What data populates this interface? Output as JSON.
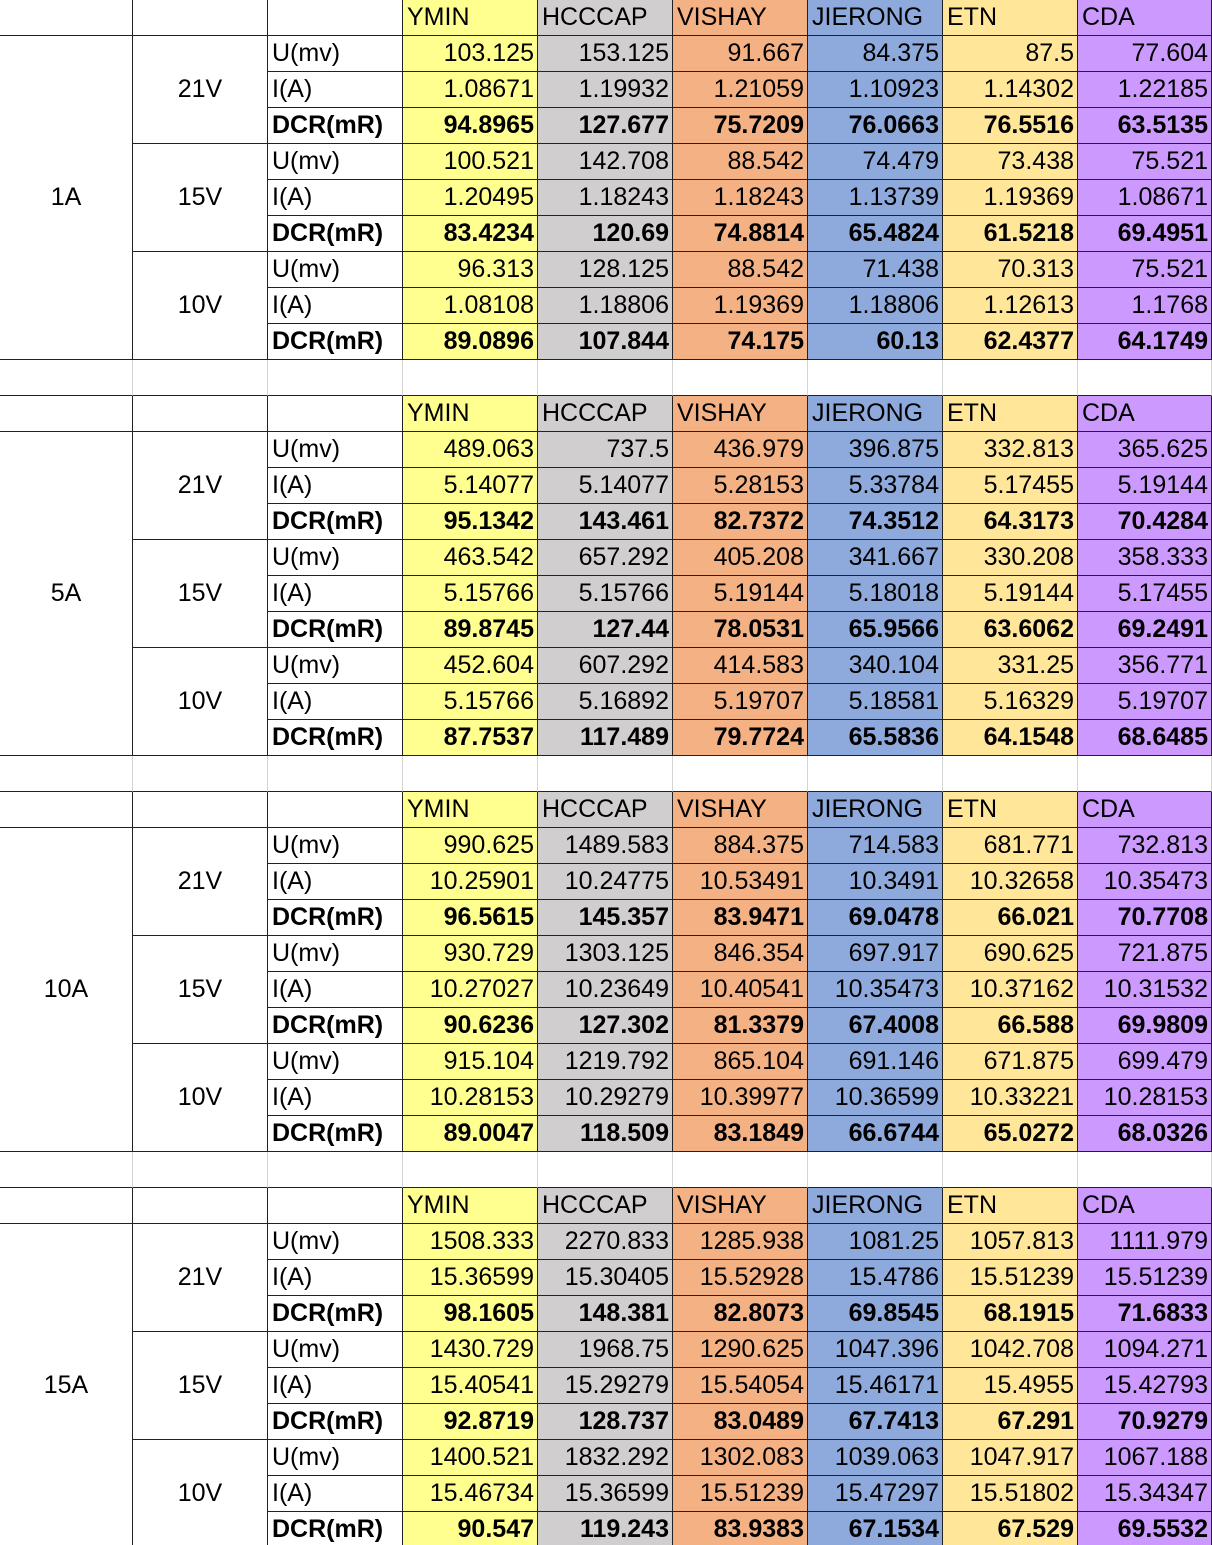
{
  "blocks": [
    {
      "current": "1A",
      "headers": [
        "YMIN",
        "HCCCAP",
        "VISHAY",
        "JIERONG",
        "ETN",
        "CDA"
      ],
      "groups": [
        {
          "voltage": "21V",
          "rows": [
            {
              "label": "U(mv)",
              "values": [
                "103.125",
                "153.125",
                "91.667",
                "84.375",
                "87.5",
                "77.604"
              ]
            },
            {
              "label": "I(A)",
              "values": [
                "1.08671",
                "1.19932",
                "1.21059",
                "1.10923",
                "1.14302",
                "1.22185"
              ]
            },
            {
              "label": "DCR(mR)",
              "values": [
                "94.8965",
                "127.677",
                "75.7209",
                "76.0663",
                "76.5516",
                "63.5135"
              ]
            }
          ]
        },
        {
          "voltage": "15V",
          "rows": [
            {
              "label": "U(mv)",
              "values": [
                "100.521",
                "142.708",
                "88.542",
                "74.479",
                "73.438",
                "75.521"
              ]
            },
            {
              "label": "I(A)",
              "values": [
                "1.20495",
                "1.18243",
                "1.18243",
                "1.13739",
                "1.19369",
                "1.08671"
              ]
            },
            {
              "label": "DCR(mR)",
              "values": [
                "83.4234",
                "120.69",
                "74.8814",
                "65.4824",
                "61.5218",
                "69.4951"
              ]
            }
          ]
        },
        {
          "voltage": "10V",
          "rows": [
            {
              "label": "U(mv)",
              "values": [
                "96.313",
                "128.125",
                "88.542",
                "71.438",
                "70.313",
                "75.521"
              ]
            },
            {
              "label": "I(A)",
              "values": [
                "1.08108",
                "1.18806",
                "1.19369",
                "1.18806",
                "1.12613",
                "1.1768"
              ]
            },
            {
              "label": "DCR(mR)",
              "values": [
                "89.0896",
                "107.844",
                "74.175",
                "60.13",
                "62.4377",
                "64.1749"
              ]
            }
          ]
        }
      ]
    },
    {
      "current": "5A",
      "headers": [
        "YMIN",
        "HCCCAP",
        "VISHAY",
        "JIERONG",
        "ETN",
        "CDA"
      ],
      "groups": [
        {
          "voltage": "21V",
          "rows": [
            {
              "label": "U(mv)",
              "values": [
                "489.063",
                "737.5",
                "436.979",
                "396.875",
                "332.813",
                "365.625"
              ]
            },
            {
              "label": "I(A)",
              "values": [
                "5.14077",
                "5.14077",
                "5.28153",
                "5.33784",
                "5.17455",
                "5.19144"
              ]
            },
            {
              "label": "DCR(mR)",
              "values": [
                "95.1342",
                "143.461",
                "82.7372",
                "74.3512",
                "64.3173",
                "70.4284"
              ]
            }
          ]
        },
        {
          "voltage": "15V",
          "rows": [
            {
              "label": "U(mv)",
              "values": [
                "463.542",
                "657.292",
                "405.208",
                "341.667",
                "330.208",
                "358.333"
              ]
            },
            {
              "label": "I(A)",
              "values": [
                "5.15766",
                "5.15766",
                "5.19144",
                "5.18018",
                "5.19144",
                "5.17455"
              ]
            },
            {
              "label": "DCR(mR)",
              "values": [
                "89.8745",
                "127.44",
                "78.0531",
                "65.9566",
                "63.6062",
                "69.2491"
              ]
            }
          ]
        },
        {
          "voltage": "10V",
          "rows": [
            {
              "label": "U(mv)",
              "values": [
                "452.604",
                "607.292",
                "414.583",
                "340.104",
                "331.25",
                "356.771"
              ]
            },
            {
              "label": "I(A)",
              "values": [
                "5.15766",
                "5.16892",
                "5.19707",
                "5.18581",
                "5.16329",
                "5.19707"
              ]
            },
            {
              "label": "DCR(mR)",
              "values": [
                "87.7537",
                "117.489",
                "79.7724",
                "65.5836",
                "64.1548",
                "68.6485"
              ]
            }
          ]
        }
      ]
    },
    {
      "current": "10A",
      "headers": [
        "YMIN",
        "HCCCAP",
        "VISHAY",
        "JIERONG",
        "ETN",
        "CDA"
      ],
      "groups": [
        {
          "voltage": "21V",
          "rows": [
            {
              "label": "U(mv)",
              "values": [
                "990.625",
                "1489.583",
                "884.375",
                "714.583",
                "681.771",
                "732.813"
              ]
            },
            {
              "label": "I(A)",
              "values": [
                "10.25901",
                "10.24775",
                "10.53491",
                "10.3491",
                "10.32658",
                "10.35473"
              ]
            },
            {
              "label": "DCR(mR)",
              "values": [
                "96.5615",
                "145.357",
                "83.9471",
                "69.0478",
                "66.021",
                "70.7708"
              ]
            }
          ]
        },
        {
          "voltage": "15V",
          "rows": [
            {
              "label": "U(mv)",
              "values": [
                "930.729",
                "1303.125",
                "846.354",
                "697.917",
                "690.625",
                "721.875"
              ]
            },
            {
              "label": "I(A)",
              "values": [
                "10.27027",
                "10.23649",
                "10.40541",
                "10.35473",
                "10.37162",
                "10.31532"
              ]
            },
            {
              "label": "DCR(mR)",
              "values": [
                "90.6236",
                "127.302",
                "81.3379",
                "67.4008",
                "66.588",
                "69.9809"
              ]
            }
          ]
        },
        {
          "voltage": "10V",
          "rows": [
            {
              "label": "U(mv)",
              "values": [
                "915.104",
                "1219.792",
                "865.104",
                "691.146",
                "671.875",
                "699.479"
              ]
            },
            {
              "label": "I(A)",
              "values": [
                "10.28153",
                "10.29279",
                "10.39977",
                "10.36599",
                "10.33221",
                "10.28153"
              ]
            },
            {
              "label": "DCR(mR)",
              "values": [
                "89.0047",
                "118.509",
                "83.1849",
                "66.6744",
                "65.0272",
                "68.0326"
              ]
            }
          ]
        }
      ]
    },
    {
      "current": "15A",
      "headers": [
        "YMIN",
        "HCCCAP",
        "VISHAY",
        "JIERONG",
        "ETN",
        "CDA"
      ],
      "groups": [
        {
          "voltage": "21V",
          "rows": [
            {
              "label": "U(mv)",
              "values": [
                "1508.333",
                "2270.833",
                "1285.938",
                "1081.25",
                "1057.813",
                "1111.979"
              ]
            },
            {
              "label": "I(A)",
              "values": [
                "15.36599",
                "15.30405",
                "15.52928",
                "15.4786",
                "15.51239",
                "15.51239"
              ]
            },
            {
              "label": "DCR(mR)",
              "values": [
                "98.1605",
                "148.381",
                "82.8073",
                "69.8545",
                "68.1915",
                "71.6833"
              ]
            }
          ]
        },
        {
          "voltage": "15V",
          "rows": [
            {
              "label": "U(mv)",
              "values": [
                "1430.729",
                "1968.75",
                "1290.625",
                "1047.396",
                "1042.708",
                "1094.271"
              ]
            },
            {
              "label": "I(A)",
              "values": [
                "15.40541",
                "15.29279",
                "15.54054",
                "15.46171",
                "15.4955",
                "15.42793"
              ]
            },
            {
              "label": "DCR(mR)",
              "values": [
                "92.8719",
                "128.737",
                "83.0489",
                "67.7413",
                "67.291",
                "70.9279"
              ]
            }
          ]
        },
        {
          "voltage": "10V",
          "rows": [
            {
              "label": "U(mv)",
              "values": [
                "1400.521",
                "1832.292",
                "1302.083",
                "1039.063",
                "1047.917",
                "1067.188"
              ]
            },
            {
              "label": "I(A)",
              "values": [
                "15.46734",
                "15.36599",
                "15.51239",
                "15.47297",
                "15.51802",
                "15.34347"
              ]
            },
            {
              "label": "DCR(mR)",
              "values": [
                "90.547",
                "119.243",
                "83.9383",
                "67.1534",
                "67.529",
                "69.5532"
              ]
            }
          ]
        }
      ]
    }
  ]
}
